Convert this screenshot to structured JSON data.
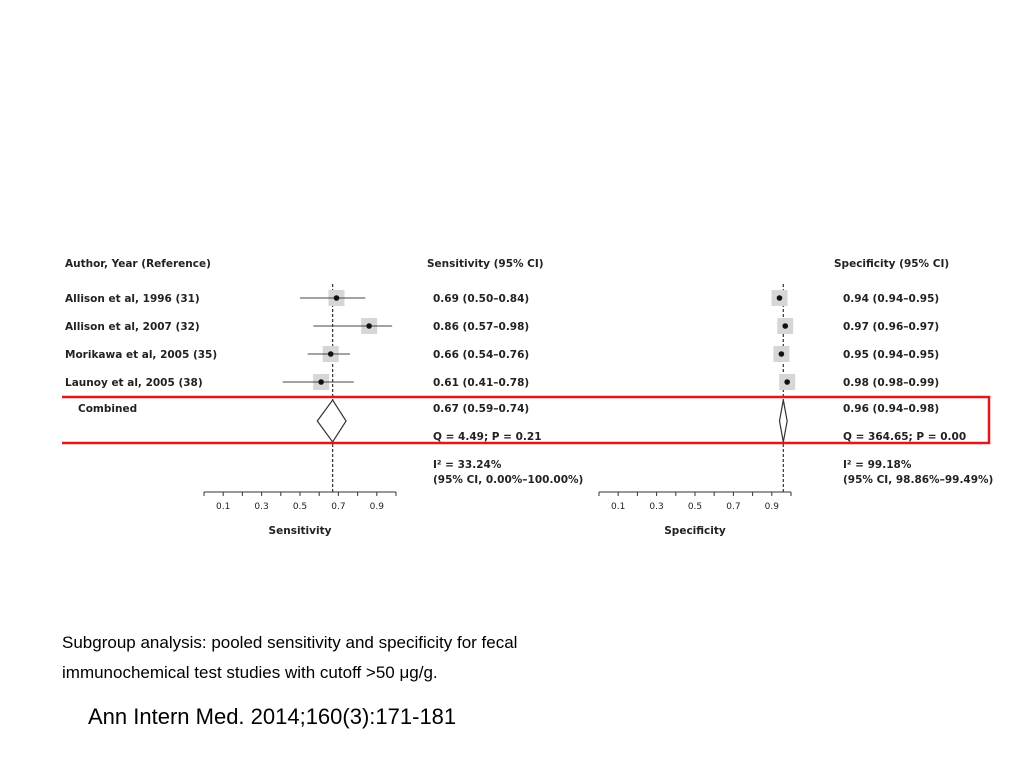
{
  "figure": {
    "highlight_color": "#e8141b",
    "headers": {
      "author": "Author, Year (Reference)",
      "sensitivity": "Sensitivity (95% CI)",
      "specificity": "Specificity (95% CI)"
    },
    "combined_label": "Combined",
    "heterogeneity": {
      "sensitivity_q": "Q = 4.49; P = 0.21",
      "sensitivity_i2": "I² = 33.24%",
      "sensitivity_i2_ci": "(95% CI, 0.00%–100.00%)",
      "specificity_q": "Q = 364.65; P = 0.00",
      "specificity_i2": "I² = 99.18%",
      "specificity_i2_ci": "(95% CI, 98.86%–99.49%)"
    }
  },
  "chart_data": [
    {
      "type": "forest",
      "xlabel": "Sensitivity",
      "xlim": [
        0.0,
        1.0
      ],
      "ticks": [
        0.1,
        0.3,
        0.5,
        0.7,
        0.9
      ],
      "studies": [
        {
          "name": "Allison et al, 1996 (31)",
          "value": 0.69,
          "lo": 0.5,
          "hi": 0.84,
          "text": "0.69 (0.50–0.84)"
        },
        {
          "name": "Allison et al, 2007 (32)",
          "value": 0.86,
          "lo": 0.57,
          "hi": 0.98,
          "text": "0.86 (0.57–0.98)"
        },
        {
          "name": "Morikawa et al, 2005 (35)",
          "value": 0.66,
          "lo": 0.54,
          "hi": 0.76,
          "text": "0.66 (0.54–0.76)"
        },
        {
          "name": "Launoy et al, 2005 (38)",
          "value": 0.61,
          "lo": 0.41,
          "hi": 0.78,
          "text": "0.61 (0.41–0.78)"
        }
      ],
      "combined": {
        "value": 0.67,
        "lo": 0.59,
        "hi": 0.74,
        "text": "0.67 (0.59–0.74)"
      }
    },
    {
      "type": "forest",
      "xlabel": "Specificity",
      "xlim": [
        0.0,
        1.0
      ],
      "ticks": [
        0.1,
        0.3,
        0.5,
        0.7,
        0.9
      ],
      "studies": [
        {
          "name": "Allison et al, 1996 (31)",
          "value": 0.94,
          "lo": 0.94,
          "hi": 0.95,
          "text": "0.94 (0.94–0.95)"
        },
        {
          "name": "Allison et al, 2007 (32)",
          "value": 0.97,
          "lo": 0.96,
          "hi": 0.97,
          "text": "0.97 (0.96–0.97)"
        },
        {
          "name": "Morikawa et al, 2005 (35)",
          "value": 0.95,
          "lo": 0.94,
          "hi": 0.95,
          "text": "0.95 (0.94–0.95)"
        },
        {
          "name": "Launoy et al, 2005 (38)",
          "value": 0.98,
          "lo": 0.98,
          "hi": 0.99,
          "text": "0.98 (0.98–0.99)"
        }
      ],
      "combined": {
        "value": 0.96,
        "lo": 0.94,
        "hi": 0.98,
        "text": "0.96 (0.94–0.98)"
      }
    }
  ],
  "caption": {
    "line1": "Subgroup analysis: pooled sensitivity and specificity for fecal",
    "line2": "immunochemical test studies with cutoff >50 μg/g."
  },
  "citation": "Ann Intern Med. 2014;160(3):171-181"
}
